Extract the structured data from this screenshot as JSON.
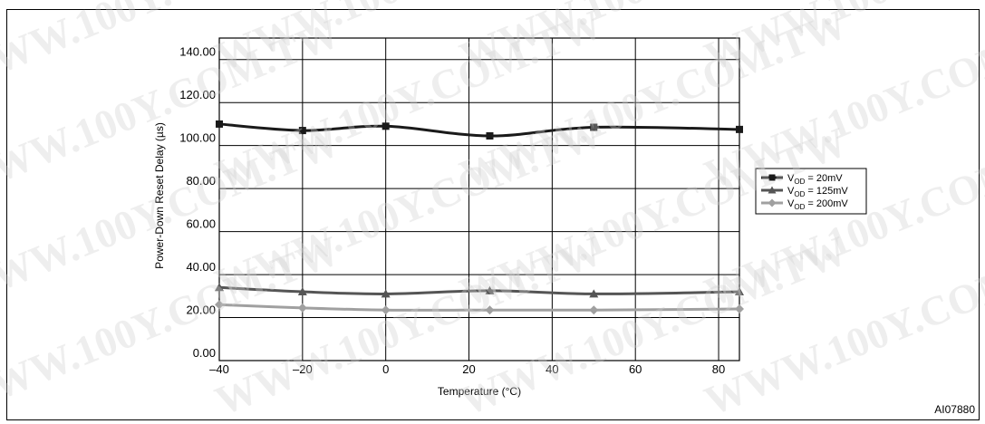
{
  "chart_data": {
    "type": "line",
    "title": "",
    "xlabel": "Temperature (°C)",
    "ylabel": "Power-Down Reset Delay (µs)",
    "xlim": [
      -40,
      85
    ],
    "ylim": [
      0,
      150
    ],
    "xticks": [
      -40,
      -20,
      0,
      20,
      40,
      60,
      80
    ],
    "xtick_labels": [
      "–40",
      "–20",
      "0",
      "20",
      "40",
      "60",
      "80"
    ],
    "yticks": [
      0,
      20,
      40,
      60,
      80,
      100,
      120,
      140
    ],
    "ytick_labels": [
      "0.00",
      "20.00",
      "40.00",
      "60.00",
      "80.00",
      "100.00",
      "120.00",
      "140.00"
    ],
    "grid": true,
    "legend_position": "right",
    "x": [
      -40,
      -20,
      0,
      25,
      50,
      85
    ],
    "series": [
      {
        "legend_main": "V",
        "legend_sub": "OD",
        "legend_rest": " = 20mV",
        "marker": "square",
        "color": "#1a1a1a",
        "values": [
          110,
          107,
          109,
          104.5,
          108.5,
          107.5
        ]
      },
      {
        "legend_main": "V",
        "legend_sub": "OD",
        "legend_rest": " = 125mV",
        "marker": "triangle",
        "color": "#555555",
        "values": [
          34,
          32,
          31,
          32.5,
          31,
          32
        ]
      },
      {
        "legend_main": "V",
        "legend_sub": "OD",
        "legend_rest": " = 200mV",
        "marker": "diamond",
        "color": "#a0a0a0",
        "values": [
          26,
          24.5,
          23.5,
          23.5,
          23.5,
          24
        ]
      }
    ],
    "figure_id": "AI07880"
  },
  "watermark_text": "WWW.100Y.COM.TW"
}
